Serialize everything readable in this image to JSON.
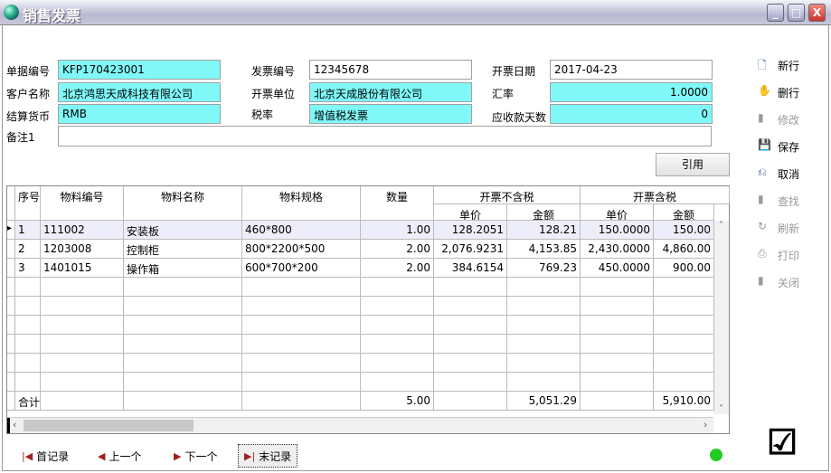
{
  "window": {
    "title": "销售发票"
  },
  "form": {
    "doc_no_label": "单据编号",
    "doc_no": "KFP170423001",
    "invoice_no_label": "发票编号",
    "invoice_no": "12345678",
    "invoice_date_label": "开票日期",
    "invoice_date": "2017-04-23",
    "customer_label": "客户名称",
    "customer": "北京鸿思天成科技有限公司",
    "issuer_label": "开票单位",
    "issuer": "北京天成股份有限公司",
    "rate_label": "汇率",
    "rate": "1.0000",
    "currency_label": "结算货币",
    "currency": "RMB",
    "tax_label": "税率",
    "tax": "增值税发票",
    "days_label": "应收款天数",
    "days": "0",
    "remark_label": "备注1",
    "remark": ""
  },
  "cite_button": "引用",
  "toolbar": [
    {
      "label": "新行",
      "icon": "new-row-icon",
      "enabled": true
    },
    {
      "label": "删行",
      "icon": "delete-row-icon",
      "enabled": true
    },
    {
      "label": "修改",
      "icon": "edit-icon",
      "enabled": false
    },
    {
      "label": "保存",
      "icon": "save-icon",
      "enabled": true
    },
    {
      "label": "取消",
      "icon": "cancel-icon",
      "enabled": true
    },
    {
      "label": "查找",
      "icon": "find-icon",
      "enabled": false
    },
    {
      "label": "刷新",
      "icon": "refresh-icon",
      "enabled": false
    },
    {
      "label": "打印",
      "icon": "print-icon",
      "enabled": false
    },
    {
      "label": "关闭",
      "icon": "close-icon",
      "enabled": false
    }
  ],
  "table": {
    "headers": [
      "序号",
      "物料编号",
      "物料名称",
      "物料规格",
      "数量"
    ],
    "group_ex": "开票不含税",
    "group_inc": "开票含税",
    "sub": [
      "单价",
      "金额",
      "单价",
      "金额"
    ],
    "rows": [
      [
        "1",
        "111002",
        "安装板",
        "460*800",
        "1.00",
        "128.2051",
        "128.21",
        "150.0000",
        "150.00"
      ],
      [
        "2",
        "1203008",
        "控制柜",
        "800*2200*500",
        "2.00",
        "2,076.9231",
        "4,153.85",
        "2,430.0000",
        "4,860.00"
      ],
      [
        "3",
        "1401015",
        "操作箱",
        "600*700*200",
        "2.00",
        "384.6154",
        "769.23",
        "450.0000",
        "900.00"
      ]
    ],
    "total": [
      "合计",
      "",
      "",
      "",
      "5.00",
      "",
      "5,051.29",
      "",
      "5,910.00"
    ]
  },
  "nav": {
    "first": "首记录",
    "prev": "上一个",
    "next": "下一个",
    "last": "末记录"
  }
}
